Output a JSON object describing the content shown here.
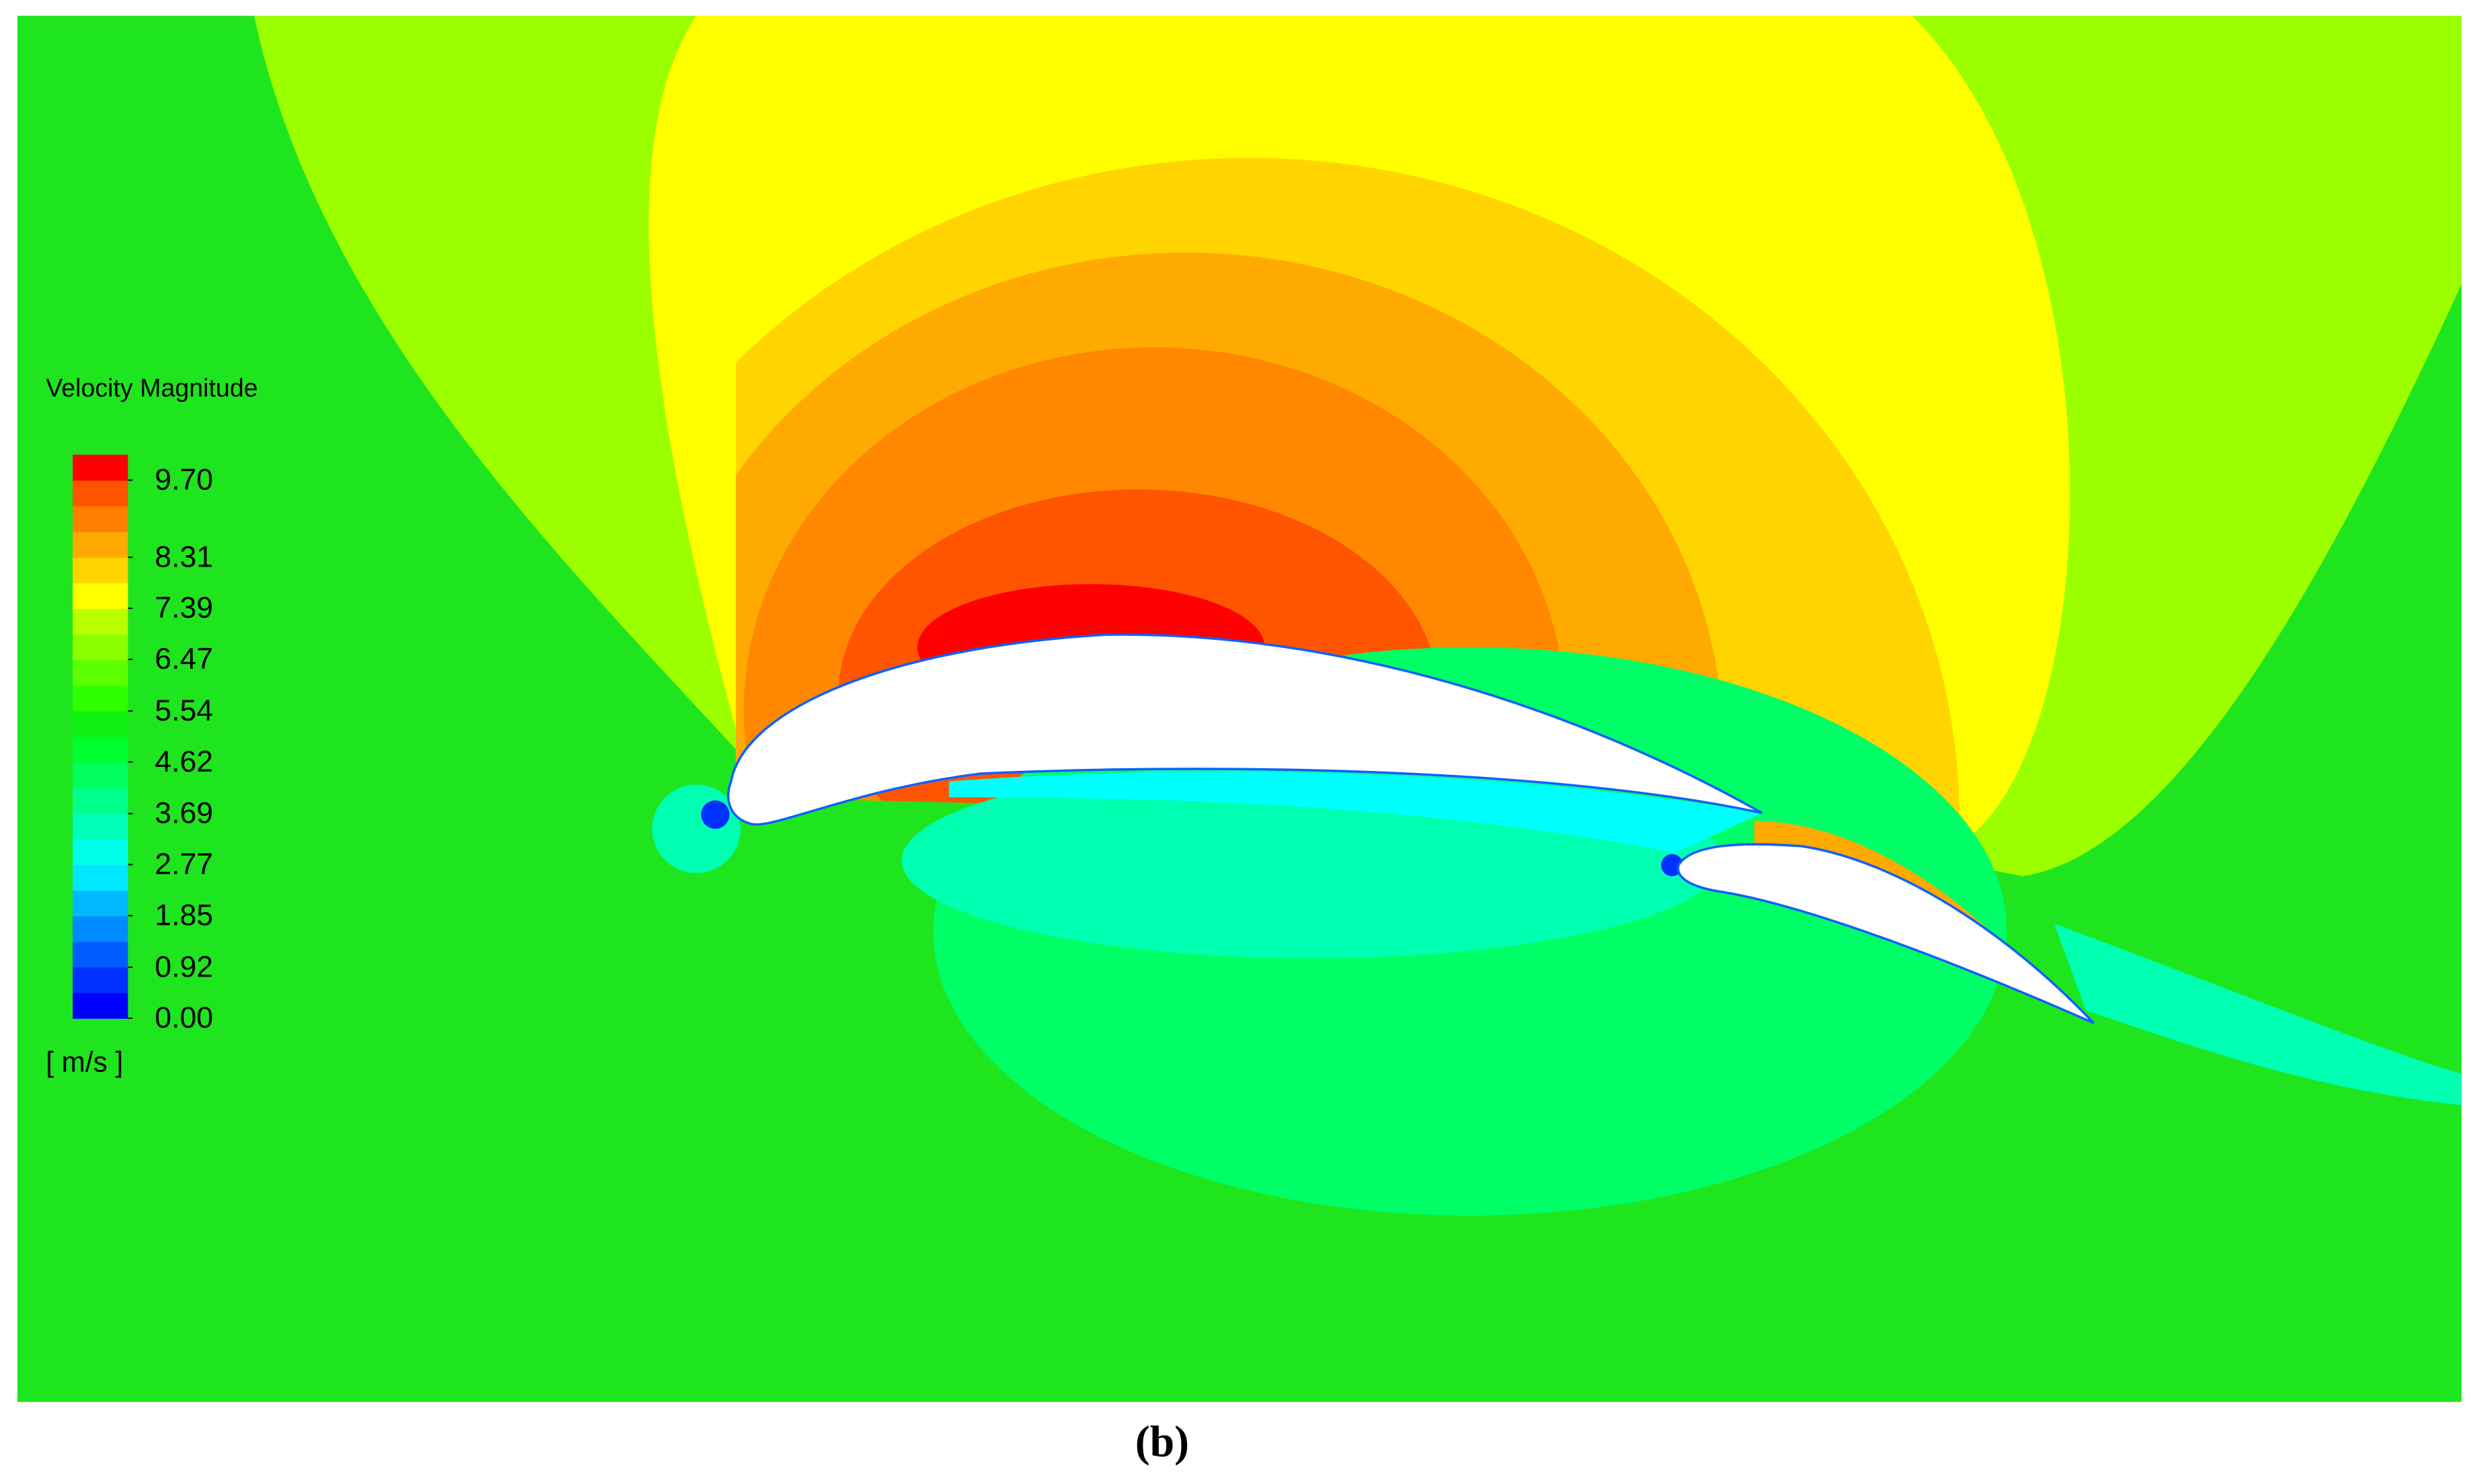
{
  "chart_data": {
    "type": "contour",
    "caption": "(b)",
    "colorbar": {
      "title": "Velocity Magnitude",
      "unit": "[ m/s ]",
      "clim": [
        0,
        10.16
      ],
      "ticks": [
        {
          "value": 0,
          "label": "0.00"
        },
        0.92,
        1.85,
        2.77,
        3.69,
        4.62,
        5.54,
        6.47,
        7.39,
        8.31,
        {
          "value": 9.7,
          "label": "9.70"
        }
      ],
      "colors": [
        "#0000ff",
        "#0030ff",
        "#005dff",
        "#008bff",
        "#00b9ff",
        "#00e8ff",
        "#00ffe8",
        "#00ffb9",
        "#00ff8b",
        "#00ff5d",
        "#00ff2e",
        "#10f010",
        "#2eff00",
        "#5dff00",
        "#8bff00",
        "#b9ff00",
        "#ffff00",
        "#ffd400",
        "#ffaa00",
        "#ff8000",
        "#ff5500",
        "#ff0000"
      ]
    }
  }
}
